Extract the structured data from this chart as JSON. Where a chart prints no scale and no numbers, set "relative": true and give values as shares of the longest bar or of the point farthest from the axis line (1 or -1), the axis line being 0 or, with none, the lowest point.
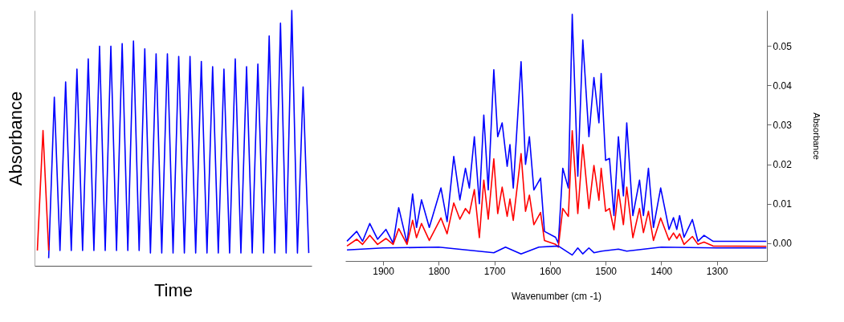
{
  "chart_data": [
    {
      "type": "line",
      "relative": true,
      "xlabel": "Time",
      "ylabel": "Absorbance",
      "legend": false,
      "categories": [
        null,
        null,
        null,
        null,
        null,
        null,
        null,
        null,
        null,
        null,
        null,
        null,
        null,
        null,
        null,
        null,
        null,
        null,
        null,
        null,
        null,
        null,
        null,
        null,
        null,
        null,
        null,
        null,
        null,
        null,
        null,
        null,
        null,
        null,
        null,
        null,
        null,
        null,
        null,
        null,
        null,
        null,
        null,
        null,
        null,
        null,
        null,
        null,
        null
      ],
      "series": [
        {
          "color": "#0000ff",
          "values": [
            null,
            null,
            0.03,
            0.66,
            0.06,
            0.72,
            0.06,
            0.77,
            0.06,
            0.81,
            0.06,
            0.86,
            0.06,
            0.86,
            0.06,
            0.87,
            0.06,
            0.88,
            0.06,
            0.85,
            0.05,
            0.83,
            0.05,
            0.83,
            0.05,
            0.82,
            0.05,
            0.82,
            0.05,
            0.8,
            0.05,
            0.78,
            0.05,
            0.77,
            0.05,
            0.81,
            0.05,
            0.78,
            0.05,
            0.79,
            0.05,
            0.9,
            0.05,
            0.95,
            0.05,
            1.0,
            0.05,
            0.7,
            0.05
          ]
        },
        {
          "color": "#ff0000",
          "values": [
            0.06,
            0.53,
            0.06,
            null,
            null,
            null,
            null,
            null,
            null,
            null,
            null,
            null,
            null,
            null,
            null,
            null,
            null,
            null,
            null,
            null,
            null,
            null,
            null,
            null,
            null,
            null,
            null,
            null,
            null,
            null,
            null,
            null,
            null,
            null,
            null,
            null,
            null,
            null,
            null,
            null,
            null,
            null,
            null,
            null,
            null,
            null,
            null,
            null,
            null
          ]
        }
      ]
    },
    {
      "type": "line",
      "xlabel": "Wavenumber (cm -1)",
      "ylabel": "Absorbance",
      "legend": false,
      "grid": false,
      "xlim": [
        1968,
        1210
      ],
      "xticks": [
        1900,
        1800,
        1700,
        1600,
        1500,
        1400,
        1300
      ],
      "ylim": [
        -0.0045,
        0.059
      ],
      "yticks": [
        {
          "value": 0,
          "label": "0.00"
        },
        {
          "value": 0.01,
          "label": "0.01"
        },
        {
          "value": 0.02,
          "label": "0.02"
        },
        {
          "value": 0.03,
          "label": "0.03"
        },
        {
          "value": 0.04,
          "label": "0.04"
        },
        {
          "value": 0.05,
          "label": "0.05"
        }
      ],
      "series": [
        {
          "color": "#0000ff",
          "x": [
            1965,
            1947.5,
            1937,
            1924,
            1910,
            1895,
            1882,
            1872,
            1857,
            1847,
            1840,
            1831,
            1817,
            1796,
            1785,
            1773,
            1762,
            1752,
            1745,
            1736,
            1727,
            1719,
            1711,
            1701,
            1694,
            1686,
            1677,
            1672,
            1666,
            1652,
            1644,
            1637,
            1629,
            1617,
            1610,
            1590,
            1585,
            1577,
            1567,
            1560,
            1550,
            1541,
            1530,
            1521,
            1512,
            1508,
            1500,
            1493,
            1485,
            1477,
            1468,
            1462,
            1451,
            1439,
            1432,
            1423,
            1414,
            1401,
            1386,
            1378,
            1372,
            1367,
            1359,
            1344,
            1334,
            1323,
            1307,
            1211
          ],
          "values": [
            0.0005,
            0.003,
            0.0005,
            0.005,
            0.001,
            0.0035,
            0.0,
            0.009,
            0.0,
            0.0125,
            0.004,
            0.011,
            0.004,
            0.014,
            0.0055,
            0.022,
            0.011,
            0.019,
            0.014,
            0.027,
            0.01,
            0.0325,
            0.0135,
            0.044,
            0.027,
            0.0305,
            0.0195,
            0.025,
            0.014,
            0.046,
            0.02,
            0.027,
            0.0135,
            0.0165,
            0.003,
            0.0015,
            0.0,
            0.019,
            0.014,
            0.058,
            0.017,
            0.0515,
            0.027,
            0.042,
            0.0305,
            0.043,
            0.021,
            0.0215,
            0.007,
            0.027,
            0.012,
            0.0305,
            0.007,
            0.016,
            0.007,
            0.019,
            0.004,
            0.014,
            0.0035,
            0.0065,
            0.0035,
            0.007,
            0.0015,
            0.006,
            0.0005,
            0.002,
            0.0005,
            0.0005
          ]
        },
        {
          "color": "#ff0000",
          "x": [
            1965,
            1947.5,
            1937,
            1924,
            1910,
            1895,
            1882,
            1872,
            1857,
            1847,
            1840,
            1831,
            1817,
            1796,
            1785,
            1773,
            1762,
            1752,
            1745,
            1736,
            1727,
            1719,
            1711,
            1701,
            1694,
            1686,
            1677,
            1672,
            1666,
            1652,
            1644,
            1637,
            1629,
            1617,
            1610,
            1590,
            1585,
            1577,
            1567,
            1560,
            1550,
            1541,
            1530,
            1521,
            1512,
            1508,
            1500,
            1493,
            1485,
            1477,
            1468,
            1462,
            1451,
            1439,
            1432,
            1423,
            1414,
            1401,
            1386,
            1378,
            1372,
            1367,
            1359,
            1344,
            1334,
            1323,
            1307,
            1211
          ],
          "values": [
            -0.0007,
            0.001,
            -0.0003,
            0.002,
            -0.0003,
            0.0012,
            -0.0003,
            0.0037,
            -0.0003,
            0.0058,
            0.0014,
            0.005,
            0.0007,
            0.0064,
            0.0024,
            0.0102,
            0.0061,
            0.0088,
            0.0075,
            0.0136,
            0.0014,
            0.016,
            0.0061,
            0.0214,
            0.0075,
            0.0142,
            0.0068,
            0.0112,
            0.0058,
            0.0227,
            0.0081,
            0.0122,
            0.0047,
            0.0078,
            0.0007,
            -0.0003,
            -0.001,
            0.0088,
            0.0068,
            0.0285,
            0.0075,
            0.025,
            0.0088,
            0.0197,
            0.0109,
            0.019,
            0.0081,
            0.0088,
            0.0034,
            0.0136,
            0.0047,
            0.0142,
            0.0014,
            0.0088,
            0.0027,
            0.0081,
            0.0007,
            0.0064,
            0.0008,
            0.0026,
            0.0012,
            0.0024,
            -0.0003,
            0.0017,
            -0.0003,
            0.0003,
            -0.0007,
            -0.0008
          ]
        },
        {
          "color": "#0000ff",
          "x": [
            1965,
            1900,
            1800,
            1701,
            1680,
            1652,
            1620,
            1585,
            1560,
            1550,
            1541,
            1530,
            1521,
            1507,
            1477,
            1462,
            1400,
            1300,
            1211
          ],
          "values": [
            -0.0017,
            -0.0012,
            -0.001,
            -0.0024,
            -0.001,
            -0.0027,
            -0.001,
            -0.0007,
            -0.003,
            -0.0012,
            -0.0027,
            -0.0012,
            -0.0024,
            -0.002,
            -0.0015,
            -0.002,
            -0.001,
            -0.0012,
            -0.0012
          ]
        }
      ]
    }
  ]
}
